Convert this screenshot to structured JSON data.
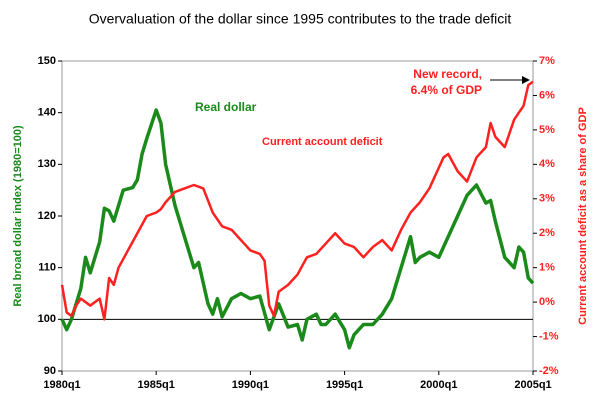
{
  "chart_data": {
    "type": "line",
    "title": "Overvaluation of the dollar since 1995 contributes to the trade deficit",
    "y_label": "Real broad dollar index (1980=100)",
    "y2_label": "Current account deficit as a share of GDP",
    "xlim": [
      1980,
      2005
    ],
    "xticks": [
      {
        "value": 1980,
        "label": "1980q1"
      },
      {
        "value": 1985,
        "label": "1985q1"
      },
      {
        "value": 1990,
        "label": "1990q1"
      },
      {
        "value": 1995,
        "label": "1995q1"
      },
      {
        "value": 2000,
        "label": "2000q1"
      },
      {
        "value": 2005,
        "label": "2005q1"
      }
    ],
    "ylim": [
      90,
      150
    ],
    "yticks": [
      90,
      100,
      110,
      120,
      130,
      140,
      150
    ],
    "y2lim": [
      -2,
      7
    ],
    "y2ticks": [
      {
        "value": -2,
        "label": "-2%"
      },
      {
        "value": -1,
        "label": "-1%"
      },
      {
        "value": 0,
        "label": "0%"
      },
      {
        "value": 1,
        "label": "1%"
      },
      {
        "value": 2,
        "label": "2%"
      },
      {
        "value": 3,
        "label": "3%"
      },
      {
        "value": 4,
        "label": "4%"
      },
      {
        "value": 5,
        "label": "5%"
      },
      {
        "value": 6,
        "label": "6%"
      },
      {
        "value": 7,
        "label": "7%"
      }
    ],
    "reference_line": 100,
    "series": [
      {
        "name": "Real dollar",
        "color": "#1a8a1a",
        "x": [
          1980,
          1980.25,
          1980.5,
          1981,
          1981.25,
          1981.5,
          1982,
          1982.25,
          1982.5,
          1982.75,
          1983,
          1983.25,
          1983.75,
          1984,
          1984.25,
          1984.5,
          1985,
          1985.25,
          1985.5,
          1986,
          1986.5,
          1987,
          1987.25,
          1987.75,
          1988,
          1988.25,
          1988.5,
          1989,
          1989.5,
          1990,
          1990.5,
          1991,
          1991.5,
          1992,
          1992.5,
          1992.75,
          1993,
          1993.5,
          1993.75,
          1994,
          1994.5,
          1995,
          1995.25,
          1995.5,
          1996,
          1996.5,
          1997,
          1997.5,
          1998,
          1998.5,
          1998.75,
          1999,
          1999.5,
          2000,
          2000.5,
          2001,
          2001.5,
          2002,
          2002.5,
          2002.75,
          2003,
          2003.5,
          2004,
          2004.25,
          2004.5,
          2004.75,
          2005
        ],
        "values": [
          100,
          98,
          100,
          106,
          112,
          109,
          115,
          121.5,
          121,
          119,
          122,
          125,
          125.5,
          127,
          132,
          135,
          140.5,
          138,
          130,
          122,
          116,
          110,
          111,
          103,
          101,
          104,
          100.5,
          104,
          105,
          104,
          104.5,
          98,
          103,
          98.5,
          99,
          96,
          100,
          101,
          99,
          99,
          101,
          98,
          94.5,
          97,
          99,
          99,
          101,
          104,
          110,
          116,
          111,
          112,
          113,
          112,
          116,
          120,
          124,
          126,
          122.5,
          123,
          119,
          112,
          110,
          114,
          113,
          108,
          107
        ]
      },
      {
        "name": "Current account deficit",
        "color": "#ff2020",
        "axis": "y2",
        "x": [
          1980,
          1980.25,
          1980.5,
          1980.75,
          1981,
          1981.5,
          1982,
          1982.25,
          1982.5,
          1982.75,
          1983,
          1983.5,
          1984,
          1984.5,
          1985,
          1985.25,
          1985.5,
          1986,
          1986.5,
          1987,
          1987.5,
          1988,
          1988.5,
          1989,
          1989.5,
          1990,
          1990.5,
          1990.75,
          1991,
          1991.25,
          1991.5,
          1992,
          1992.5,
          1993,
          1993.5,
          1994,
          1994.5,
          1995,
          1995.5,
          1996,
          1996.5,
          1997,
          1997.5,
          1998,
          1998.5,
          1999,
          1999.5,
          2000,
          2000.25,
          2000.5,
          2001,
          2001.5,
          2002,
          2002.5,
          2002.75,
          2003,
          2003.5,
          2004,
          2004.5,
          2004.75,
          2005
        ],
        "values": [
          0.5,
          -0.3,
          -0.4,
          -0.1,
          0.1,
          -0.1,
          0.1,
          -0.5,
          0.7,
          0.5,
          1.0,
          1.5,
          2.0,
          2.5,
          2.6,
          2.7,
          2.9,
          3.2,
          3.3,
          3.4,
          3.3,
          2.6,
          2.2,
          2.1,
          1.8,
          1.5,
          1.4,
          1.2,
          -0.1,
          -0.4,
          0.3,
          0.5,
          0.8,
          1.3,
          1.4,
          1.7,
          2.0,
          1.7,
          1.6,
          1.3,
          1.6,
          1.8,
          1.5,
          2.1,
          2.6,
          2.9,
          3.3,
          3.9,
          4.2,
          4.3,
          3.8,
          3.5,
          4.2,
          4.5,
          5.2,
          4.8,
          4.5,
          5.3,
          5.7,
          6.3,
          6.4
        ]
      }
    ],
    "annotations": [
      {
        "text": "Real dollar"
      },
      {
        "text": "Current account deficit"
      },
      {
        "text": [
          "New record,",
          "6.4% of GDP"
        ]
      }
    ]
  }
}
